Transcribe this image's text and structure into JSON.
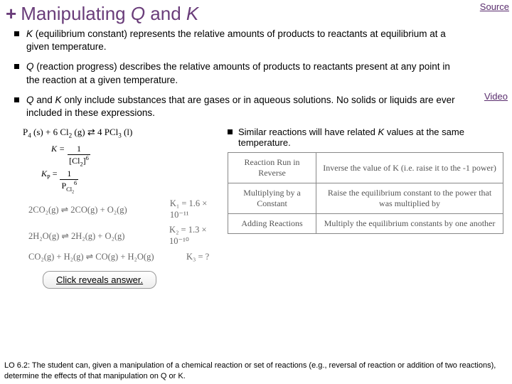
{
  "colors": {
    "plus": "#6a3d7a",
    "title": "#6a3d7a",
    "link": "#5a2d6e"
  },
  "header": {
    "plus": "+",
    "title_pre": "Manipulating ",
    "title_q": "Q",
    "title_and": " and ",
    "title_k": "K"
  },
  "source_label": "Source",
  "video_label": "Video",
  "bullets": [
    {
      "pre": "",
      "ital1": "K",
      "mid1": " (equilibrium constant) represents the relative amounts of products to reactants at equilibrium at a given temperature.",
      "ital2": "",
      "mid2": ""
    },
    {
      "pre": "",
      "ital1": "Q",
      "mid1": " (reaction progress) describes the relative amounts of products to reactants present at any point in the reaction at a given temperature.",
      "ital2": "",
      "mid2": ""
    },
    {
      "pre": "",
      "ital1": "Q",
      "mid1": " and ",
      "ital2": "K",
      "mid2": " only include substances that are gases or in aqueous solutions. No solids or liquids are ever included in these expressions."
    }
  ],
  "equation": {
    "p4": "P",
    "p4_sub": "4",
    "p4_state": " (s) + 6 Cl",
    "cl2_sub": "2",
    "cl2_state": " (g) ⇄ 4 PCl",
    "pcl3_sub": "3",
    "pcl3_state": " (l)"
  },
  "k_expr": {
    "label": "K = ",
    "num": "1",
    "den_a": "[Cl",
    "den_sub": "2",
    "den_b": "]",
    "den_sup": "6"
  },
  "kp_expr": {
    "label": "K",
    "label_sub": "P",
    "label_eq": " = ",
    "num": "1",
    "den_a": "P",
    "den_sub1": "Cl",
    "den_sub2": "2",
    "den_sup": "6"
  },
  "sub_bullet": {
    "pre": "Similar reactions will have related ",
    "ital": "K",
    "post": " values at the same temperature."
  },
  "rules_table": {
    "rows": [
      [
        "Reaction Run in Reverse",
        "Inverse the value of K (i.e. raise it to the -1 power)"
      ],
      [
        "Multiplying by a Constant",
        "Raise the equilibrium constant to the power that was multiplied by"
      ],
      [
        "Adding Reactions",
        "Multiply the equilibrium constants by one another"
      ]
    ]
  },
  "examples": [
    {
      "lhs": "2CO₂(g) ⇌ 2CO(g) + O₂(g)",
      "k": "K₁ = 1.6 × 10⁻¹¹"
    },
    {
      "lhs": "2H₂O(g) ⇌ 2H₂(g) + O₂(g)",
      "k": "K₂ = 1.3 × 10⁻¹⁰"
    },
    {
      "lhs": "CO₂(g) + H₂(g) ⇌ CO(g) + H₂O(g)",
      "k": "K₃ = ?"
    }
  ],
  "answer_button": "Click reveals answer.",
  "lo_text": "LO 6.2: The student can, given a manipulation of a chemical reaction or set of reactions (e.g., reversal of reaction or addition of two reactions), determine the effects of that manipulation on Q or K."
}
